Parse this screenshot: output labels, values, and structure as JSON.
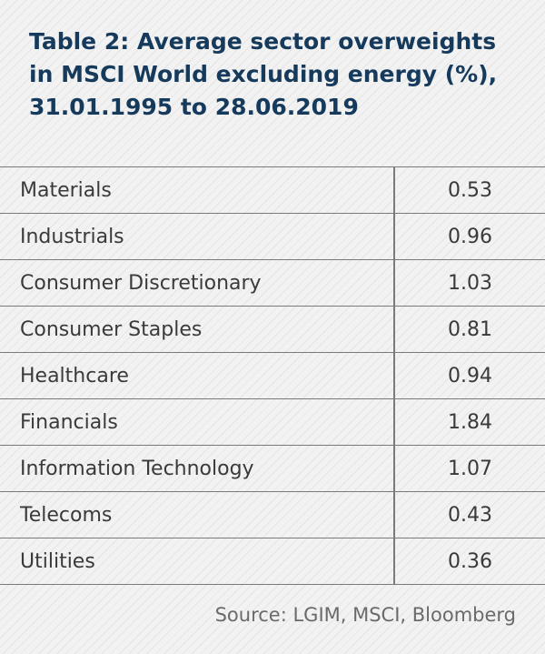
{
  "title_lines": [
    "Table 2: Average sector overweights",
    "in MSCI World excluding energy (%),",
    "31.01.1995 to 28.06.2019"
  ],
  "chart_data": {
    "type": "table",
    "title": "Table 2: Average sector overweights in MSCI World excluding energy (%), 31.01.1995 to 28.06.2019",
    "categories": [
      "Materials",
      "Industrials",
      "Consumer Discretionary",
      "Consumer Staples",
      "Healthcare",
      "Financials",
      "Information Technology",
      "Telecoms",
      "Utilities"
    ],
    "values": [
      "0.53",
      "0.96",
      "1.03",
      "0.81",
      "0.94",
      "1.84",
      "1.07",
      "0.43",
      "0.36"
    ],
    "source": "Source: LGIM, MSCI, Bloomberg"
  },
  "colors": {
    "title": "#163a5c",
    "text": "#3a3a3a",
    "source": "#6a6a6a",
    "rule": "#7a7a7a",
    "background": "#f2f2f2"
  }
}
